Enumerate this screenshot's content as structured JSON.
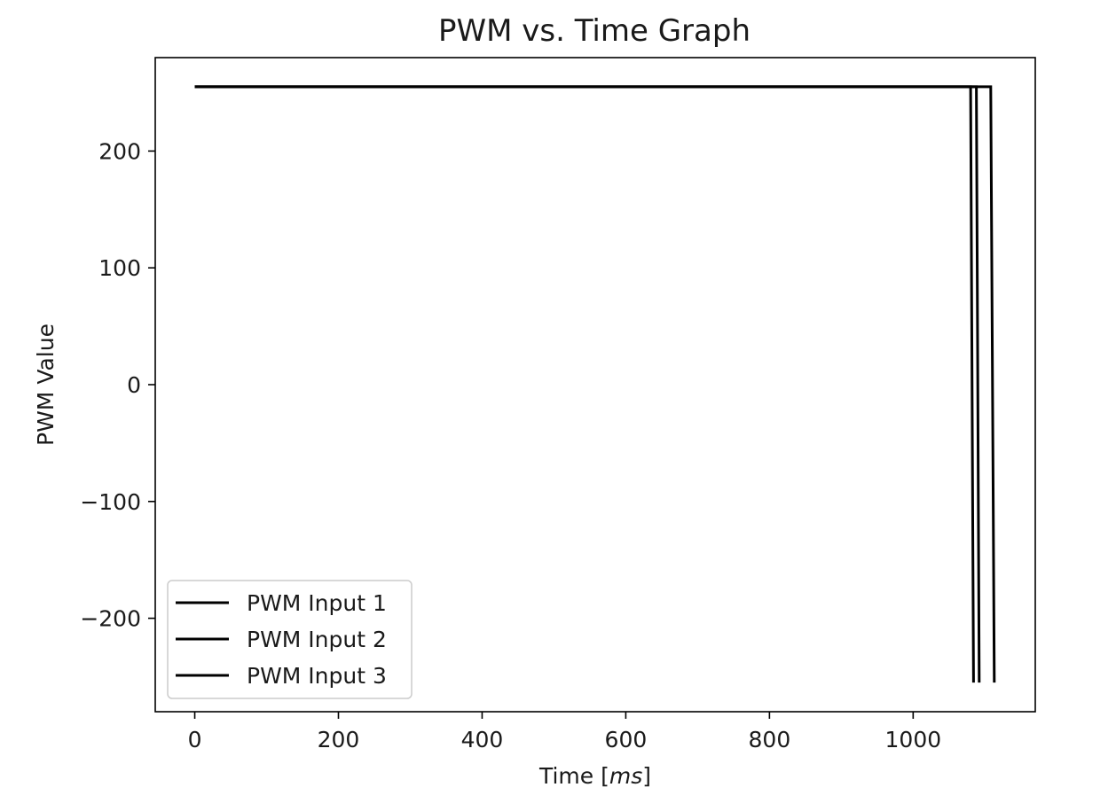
{
  "chart_data": {
    "type": "line",
    "title": "PWM vs. Time Graph",
    "xlabel_prefix": "Time [",
    "xlabel_unit": "ms",
    "xlabel_suffix": "]",
    "ylabel": "PWM Value",
    "xlim": [
      -55,
      1170
    ],
    "ylim": [
      -280,
      280
    ],
    "xticks": [
      0,
      200,
      400,
      600,
      800,
      1000
    ],
    "yticks": [
      -200,
      -100,
      0,
      100,
      200
    ],
    "xtick_labels": [
      "0",
      "200",
      "400",
      "600",
      "800",
      "1000"
    ],
    "ytick_labels": [
      "−200",
      "−100",
      "0",
      "100",
      "200"
    ],
    "grid": false,
    "legend_position": "lower-left",
    "line_color": "#000000",
    "series": [
      {
        "name": "PWM Input 1",
        "x": [
          0,
          1080,
          1084
        ],
        "y": [
          255,
          255,
          -255
        ]
      },
      {
        "name": "PWM Input 2",
        "x": [
          0,
          1088,
          1092
        ],
        "y": [
          255,
          255,
          -255
        ]
      },
      {
        "name": "PWM Input 3",
        "x": [
          0,
          1108,
          1113
        ],
        "y": [
          255,
          255,
          -255
        ]
      }
    ]
  }
}
